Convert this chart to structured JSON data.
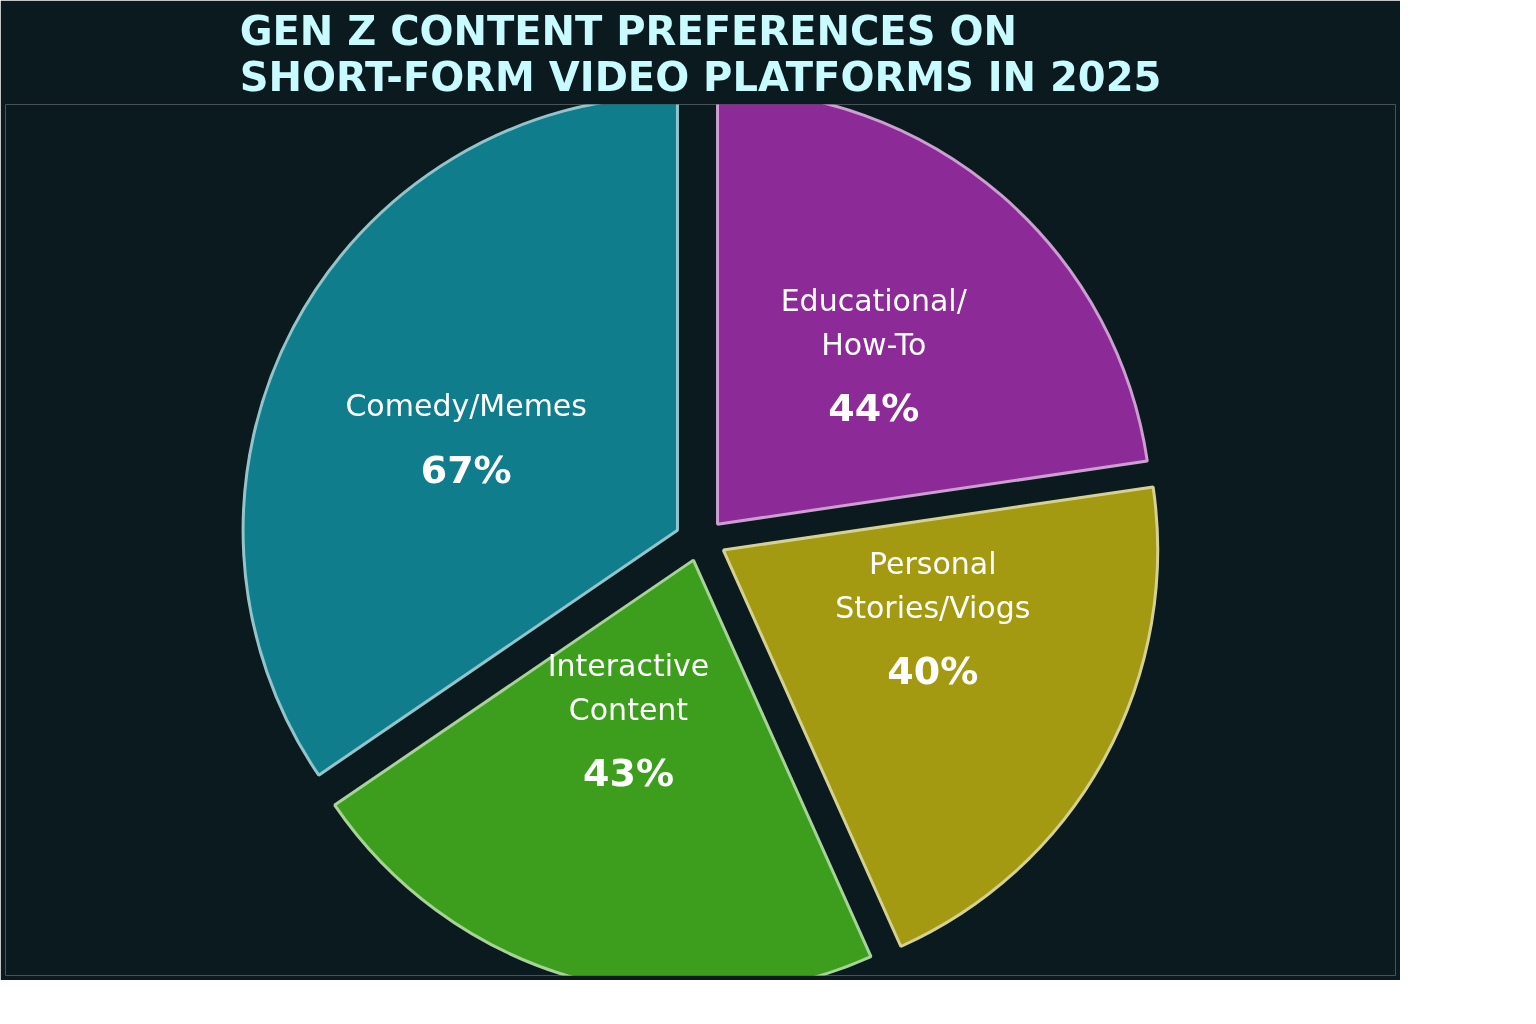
{
  "chart_data": {
    "type": "pie",
    "title": "GEN Z CONTENT PREFERENCES ON SHORT-FORM VIDEO PLATFORMS IN 2025",
    "categories": [
      "Educational/How-To",
      "Personal Stories/Viogs",
      "Interactive Content",
      "Comedy/Memes"
    ],
    "values": [
      44,
      40,
      43,
      67
    ],
    "value_labels": [
      "44%",
      "40%",
      "43%",
      "67%"
    ],
    "colors": [
      "#8c2a98",
      "#a39a12",
      "#3c9e1c",
      "#0f7d8c"
    ]
  }
}
